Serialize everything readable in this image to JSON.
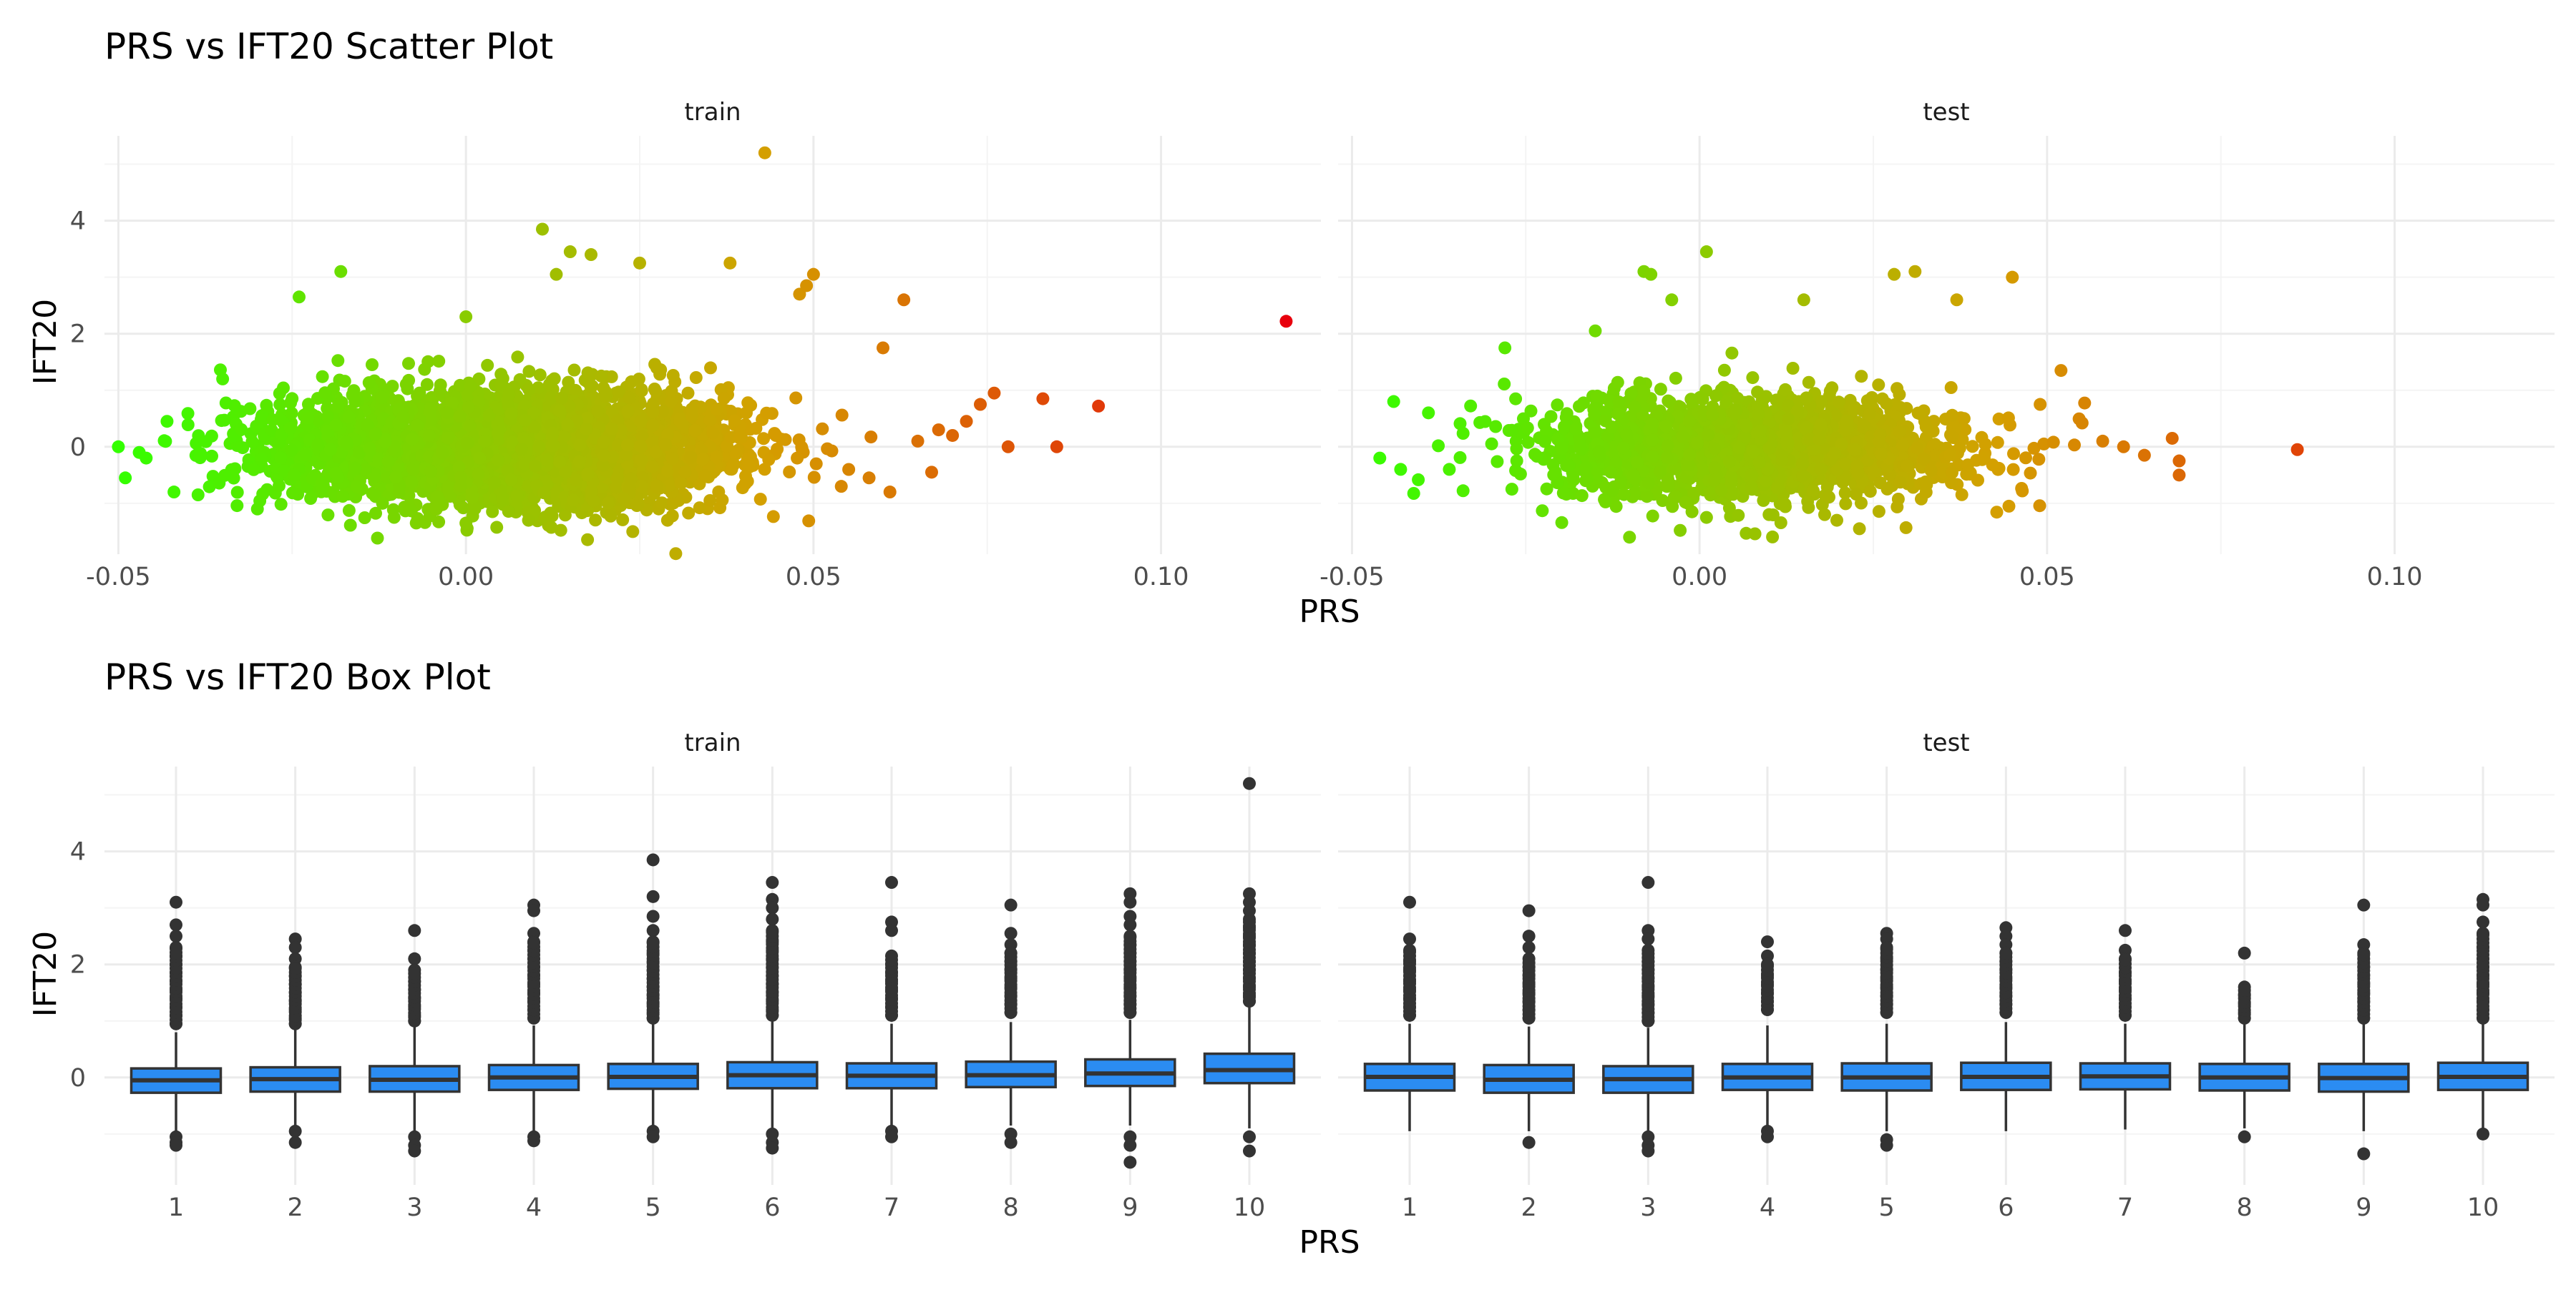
{
  "colors": {
    "background": "#ffffff",
    "grid_major": "#ebebeb",
    "grid_minor": "#f4f4f4",
    "gradient_low": "#33ff00",
    "gradient_mid": "#d4a000",
    "gradient_high": "#e8000d",
    "box_fill": "#2b8cf2",
    "box_outline": "#333333",
    "outlier": "#333333"
  },
  "chart_data": [
    {
      "type": "scatter",
      "title": "PRS vs IFT20 Scatter Plot",
      "xlabel": "PRS",
      "ylabel": "IFT20",
      "xlim": [
        -0.052,
        0.123
      ],
      "ylim": [
        -1.9,
        5.5
      ],
      "xticks": [
        -0.05,
        0.0,
        0.05,
        0.1
      ],
      "xtick_labels": [
        "-0.05",
        "0.00",
        "0.05",
        "0.10"
      ],
      "yticks": [
        0,
        2,
        4
      ],
      "ytick_labels": [
        "0",
        "2",
        "4"
      ],
      "grid": true,
      "legend": "none",
      "color_by": "PRS",
      "panels": [
        {
          "name": "train",
          "cloud": {
            "x_mean": 0.006,
            "x_sd": 0.016,
            "y_mean": 0.0,
            "y_sd": 0.38,
            "n": 4500
          },
          "points": [
            [
              0.043,
              5.2
            ],
            [
              0.118,
              2.22
            ],
            [
              0.091,
              0.72
            ],
            [
              0.085,
              0.0
            ],
            [
              0.083,
              0.85
            ],
            [
              0.076,
              0.95
            ],
            [
              0.072,
              0.45
            ],
            [
              0.07,
              0.2
            ],
            [
              0.068,
              0.3
            ],
            [
              0.065,
              0.1
            ],
            [
              0.063,
              2.6
            ],
            [
              0.061,
              -0.8
            ],
            [
              0.06,
              1.75
            ],
            [
              0.074,
              0.75
            ],
            [
              0.078,
              0.0
            ],
            [
              0.067,
              -0.45
            ],
            [
              -0.05,
              0.0
            ],
            [
              -0.049,
              -0.55
            ],
            [
              -0.047,
              -0.1
            ],
            [
              -0.046,
              -0.2
            ],
            [
              -0.043,
              0.45
            ],
            [
              -0.042,
              -0.8
            ],
            [
              -0.035,
              1.2
            ],
            [
              -0.024,
              2.65
            ],
            [
              -0.018,
              3.1
            ],
            [
              0.0,
              2.3
            ],
            [
              0.011,
              3.85
            ],
            [
              0.015,
              3.45
            ],
            [
              0.018,
              3.4
            ],
            [
              0.013,
              3.05
            ],
            [
              0.038,
              3.25
            ],
            [
              0.025,
              3.25
            ],
            [
              0.05,
              3.05
            ],
            [
              0.048,
              2.7
            ],
            [
              0.049,
              2.85
            ],
            [
              0.024,
              -1.5
            ],
            [
              0.009,
              -1.3
            ],
            [
              0.0,
              -1.35
            ],
            [
              0.029,
              -1.3
            ],
            [
              0.054,
              -0.7
            ],
            [
              0.058,
              -0.55
            ],
            [
              -0.03,
              -1.1
            ],
            [
              -0.012,
              -1.0
            ]
          ]
        },
        {
          "name": "test",
          "cloud": {
            "x_mean": 0.008,
            "x_sd": 0.015,
            "y_mean": 0.0,
            "y_sd": 0.37,
            "n": 1800
          },
          "points": [
            [
              0.086,
              -0.05
            ],
            [
              0.069,
              -0.5
            ],
            [
              0.069,
              -0.25
            ],
            [
              0.068,
              0.15
            ],
            [
              0.064,
              -0.15
            ],
            [
              0.061,
              0.0
            ],
            [
              0.058,
              0.1
            ],
            [
              0.052,
              1.35
            ],
            [
              0.049,
              0.75
            ],
            [
              0.045,
              3.0
            ],
            [
              0.037,
              2.6
            ],
            [
              0.031,
              3.1
            ],
            [
              0.028,
              3.05
            ],
            [
              0.015,
              2.6
            ],
            [
              0.001,
              3.45
            ],
            [
              -0.008,
              3.1
            ],
            [
              -0.007,
              3.05
            ],
            [
              -0.004,
              2.6
            ],
            [
              -0.015,
              2.05
            ],
            [
              -0.028,
              1.75
            ],
            [
              -0.044,
              0.8
            ],
            [
              -0.046,
              -0.2
            ],
            [
              -0.043,
              -0.4
            ],
            [
              -0.039,
              0.6
            ],
            [
              -0.036,
              -0.4
            ],
            [
              -0.027,
              -0.75
            ],
            [
              0.023,
              -1.45
            ],
            [
              0.001,
              -1.25
            ],
            [
              0.01,
              -1.2
            ],
            [
              0.018,
              -1.2
            ]
          ]
        }
      ]
    },
    {
      "type": "box",
      "title": "PRS vs IFT20 Box Plot",
      "xlabel": "PRS",
      "ylabel": "IFT20",
      "categories": [
        "1",
        "2",
        "3",
        "4",
        "5",
        "6",
        "7",
        "8",
        "9",
        "10"
      ],
      "ylim": [
        -1.9,
        5.5
      ],
      "yticks": [
        0,
        2,
        4
      ],
      "ytick_labels": [
        "0",
        "2",
        "4"
      ],
      "grid": true,
      "legend": "none",
      "panels": [
        {
          "name": "train",
          "boxes": [
            {
              "q1": -0.27,
              "median": -0.05,
              "q3": 0.16,
              "whisker_low": -0.95,
              "whisker_high": 0.8,
              "outliers": [
                3.1,
                2.7,
                2.5,
                2.3,
                2.15,
                2.0,
                1.85,
                1.7,
                1.55,
                1.4,
                1.25,
                1.1,
                0.95,
                -1.05,
                -1.15,
                -1.2
              ]
            },
            {
              "q1": -0.25,
              "median": -0.03,
              "q3": 0.18,
              "whisker_low": -0.9,
              "whisker_high": 0.85,
              "outliers": [
                2.45,
                2.3,
                2.1,
                1.95,
                1.8,
                1.65,
                1.5,
                1.35,
                1.2,
                1.05,
                0.95,
                -0.95,
                -1.15
              ]
            },
            {
              "q1": -0.25,
              "median": -0.04,
              "q3": 0.2,
              "whisker_low": -0.95,
              "whisker_high": 0.9,
              "outliers": [
                2.6,
                2.1,
                1.9,
                1.7,
                1.55,
                1.4,
                1.25,
                1.1,
                1.0,
                -1.05,
                -1.2,
                -1.3
              ]
            },
            {
              "q1": -0.22,
              "median": 0.0,
              "q3": 0.22,
              "whisker_low": -0.95,
              "whisker_high": 0.92,
              "outliers": [
                3.05,
                2.95,
                2.55,
                2.4,
                2.25,
                2.1,
                1.95,
                1.8,
                1.65,
                1.5,
                1.35,
                1.2,
                1.05,
                -1.05,
                -1.12
              ]
            },
            {
              "q1": -0.2,
              "median": 0.01,
              "q3": 0.24,
              "whisker_low": -0.9,
              "whisker_high": 0.95,
              "outliers": [
                3.85,
                3.2,
                2.85,
                2.6,
                2.4,
                2.2,
                2.05,
                1.9,
                1.75,
                1.6,
                1.45,
                1.3,
                1.15,
                1.05,
                -0.95,
                -1.05
              ]
            },
            {
              "q1": -0.19,
              "median": 0.04,
              "q3": 0.27,
              "whisker_low": -0.9,
              "whisker_high": 1.0,
              "outliers": [
                3.45,
                3.15,
                3.0,
                2.8,
                2.6,
                2.4,
                2.25,
                2.1,
                1.95,
                1.8,
                1.65,
                1.5,
                1.35,
                1.2,
                1.1,
                -1.0,
                -1.15,
                -1.25
              ]
            },
            {
              "q1": -0.19,
              "median": 0.03,
              "q3": 0.25,
              "whisker_low": -0.88,
              "whisker_high": 0.95,
              "outliers": [
                3.45,
                2.75,
                2.6,
                2.15,
                2.0,
                1.85,
                1.7,
                1.55,
                1.4,
                1.25,
                1.1,
                -0.95,
                -1.05
              ]
            },
            {
              "q1": -0.17,
              "median": 0.04,
              "q3": 0.28,
              "whisker_low": -0.85,
              "whisker_high": 0.98,
              "outliers": [
                3.05,
                2.55,
                2.35,
                2.2,
                2.05,
                1.9,
                1.75,
                1.6,
                1.45,
                1.3,
                1.15,
                -1.0,
                -1.15
              ]
            },
            {
              "q1": -0.15,
              "median": 0.07,
              "q3": 0.32,
              "whisker_low": -0.85,
              "whisker_high": 1.02,
              "outliers": [
                3.25,
                3.1,
                2.85,
                2.7,
                2.5,
                2.35,
                2.2,
                2.05,
                1.9,
                1.75,
                1.6,
                1.45,
                1.3,
                1.15,
                -1.05,
                -1.2,
                -1.5
              ]
            },
            {
              "q1": -0.1,
              "median": 0.13,
              "q3": 0.42,
              "whisker_low": -0.9,
              "whisker_high": 1.25,
              "outliers": [
                5.2,
                3.25,
                3.1,
                2.95,
                2.8,
                2.65,
                2.5,
                2.35,
                2.2,
                2.05,
                1.9,
                1.75,
                1.6,
                1.45,
                1.35,
                -1.05,
                -1.3
              ]
            }
          ]
        },
        {
          "name": "test",
          "boxes": [
            {
              "q1": -0.23,
              "median": 0.01,
              "q3": 0.24,
              "whisker_low": -0.95,
              "whisker_high": 0.95,
              "outliers": [
                3.1,
                2.45,
                2.25,
                2.05,
                1.9,
                1.7,
                1.55,
                1.4,
                1.25,
                1.1
              ]
            },
            {
              "q1": -0.27,
              "median": -0.04,
              "q3": 0.22,
              "whisker_low": -0.95,
              "whisker_high": 0.9,
              "outliers": [
                2.95,
                2.5,
                2.3,
                2.1,
                1.95,
                1.8,
                1.65,
                1.5,
                1.35,
                1.2,
                1.05,
                -1.15
              ]
            },
            {
              "q1": -0.27,
              "median": -0.03,
              "q3": 0.2,
              "whisker_low": -0.95,
              "whisker_high": 0.88,
              "outliers": [
                3.45,
                2.6,
                2.45,
                2.25,
                2.05,
                1.9,
                1.75,
                1.6,
                1.45,
                1.3,
                1.15,
                1.0,
                -1.05,
                -1.2,
                -1.3
              ]
            },
            {
              "q1": -0.22,
              "median": 0.0,
              "q3": 0.24,
              "whisker_low": -0.9,
              "whisker_high": 0.92,
              "outliers": [
                2.4,
                2.15,
                2.0,
                1.8,
                1.65,
                1.5,
                1.35,
                1.2,
                -0.95,
                -1.05
              ]
            },
            {
              "q1": -0.23,
              "median": 0.0,
              "q3": 0.25,
              "whisker_low": -0.95,
              "whisker_high": 0.95,
              "outliers": [
                2.55,
                2.45,
                2.3,
                2.1,
                1.9,
                1.75,
                1.6,
                1.45,
                1.3,
                1.15,
                -1.1,
                -1.2
              ]
            },
            {
              "q1": -0.22,
              "median": 0.01,
              "q3": 0.26,
              "whisker_low": -0.95,
              "whisker_high": 0.98,
              "outliers": [
                2.65,
                2.5,
                2.35,
                2.2,
                2.05,
                1.9,
                1.75,
                1.6,
                1.45,
                1.3,
                1.15
              ]
            },
            {
              "q1": -0.21,
              "median": 0.02,
              "q3": 0.25,
              "whisker_low": -0.92,
              "whisker_high": 0.95,
              "outliers": [
                2.6,
                2.25,
                2.1,
                1.85,
                1.7,
                1.55,
                1.4,
                1.25,
                1.1
              ]
            },
            {
              "q1": -0.23,
              "median": 0.0,
              "q3": 0.24,
              "whisker_low": -0.9,
              "whisker_high": 0.95,
              "outliers": [
                2.2,
                1.6,
                1.45,
                1.3,
                1.15,
                1.05,
                -1.05
              ]
            },
            {
              "q1": -0.25,
              "median": -0.01,
              "q3": 0.24,
              "whisker_low": -0.95,
              "whisker_high": 0.95,
              "outliers": [
                3.05,
                2.35,
                2.2,
                1.95,
                1.8,
                1.65,
                1.5,
                1.35,
                1.2,
                1.05,
                -1.35
              ]
            },
            {
              "q1": -0.22,
              "median": 0.01,
              "q3": 0.26,
              "whisker_low": -0.92,
              "whisker_high": 0.98,
              "outliers": [
                3.15,
                3.05,
                2.75,
                2.55,
                2.3,
                2.1,
                1.95,
                1.8,
                1.65,
                1.5,
                1.35,
                1.2,
                1.05,
                -1.0
              ]
            }
          ]
        }
      ]
    }
  ]
}
